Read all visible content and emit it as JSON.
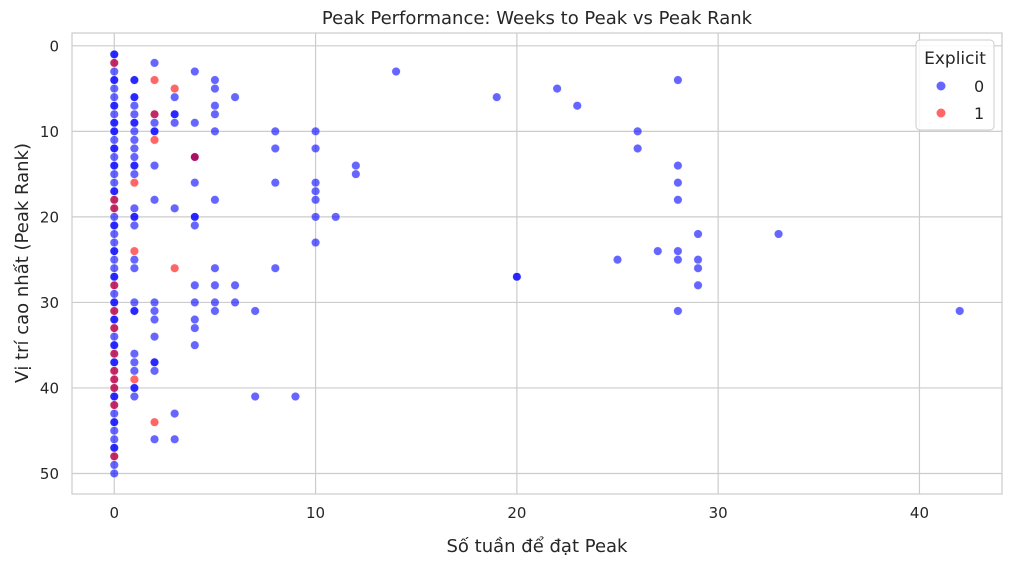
{
  "chart_data": {
    "type": "scatter",
    "title": "Peak Performance: Weeks to Peak vs Peak Rank",
    "xlabel": "Số tuần để đạt Peak",
    "ylabel": "Vị trí cao nhất (Peak Rank)",
    "xlim": [
      -2.1,
      44.1
    ],
    "ylim": [
      52.4,
      -1.5
    ],
    "y_inverted": true,
    "x_ticks": [
      0,
      10,
      20,
      30,
      40
    ],
    "y_ticks": [
      0,
      10,
      20,
      30,
      40,
      50
    ],
    "grid": true,
    "legend": {
      "title": "Explicit",
      "position": "top-right"
    },
    "series": [
      {
        "name": "0",
        "color": "#0000ff",
        "opacity": 0.6,
        "points": [
          [
            0,
            1
          ],
          [
            0,
            2
          ],
          [
            0,
            3
          ],
          [
            0,
            4
          ],
          [
            0,
            5
          ],
          [
            0,
            6
          ],
          [
            0,
            7
          ],
          [
            0,
            8
          ],
          [
            0,
            9
          ],
          [
            0,
            10
          ],
          [
            0,
            11
          ],
          [
            0,
            12
          ],
          [
            0,
            13
          ],
          [
            0,
            14
          ],
          [
            0,
            15
          ],
          [
            0,
            16
          ],
          [
            0,
            17
          ],
          [
            0,
            18
          ],
          [
            0,
            19
          ],
          [
            0,
            20
          ],
          [
            0,
            21
          ],
          [
            0,
            22
          ],
          [
            0,
            23
          ],
          [
            0,
            24
          ],
          [
            0,
            25
          ],
          [
            0,
            26
          ],
          [
            0,
            27
          ],
          [
            0,
            28
          ],
          [
            0,
            29
          ],
          [
            0,
            30
          ],
          [
            0,
            31
          ],
          [
            0,
            32
          ],
          [
            0,
            33
          ],
          [
            0,
            34
          ],
          [
            0,
            35
          ],
          [
            0,
            36
          ],
          [
            0,
            37
          ],
          [
            0,
            38
          ],
          [
            0,
            39
          ],
          [
            0,
            40
          ],
          [
            0,
            41
          ],
          [
            0,
            42
          ],
          [
            0,
            43
          ],
          [
            0,
            44
          ],
          [
            0,
            45
          ],
          [
            0,
            46
          ],
          [
            0,
            47
          ],
          [
            0,
            48
          ],
          [
            0,
            49
          ],
          [
            0,
            50
          ],
          [
            0,
            1
          ],
          [
            0,
            4
          ],
          [
            0,
            7
          ],
          [
            0,
            9
          ],
          [
            0,
            10
          ],
          [
            0,
            12
          ],
          [
            0,
            14
          ],
          [
            0,
            17
          ],
          [
            0,
            21
          ],
          [
            0,
            24
          ],
          [
            0,
            27
          ],
          [
            0,
            30
          ],
          [
            0,
            32
          ],
          [
            0,
            35
          ],
          [
            0,
            37
          ],
          [
            0,
            41
          ],
          [
            0,
            44
          ],
          [
            0,
            47
          ],
          [
            1,
            4
          ],
          [
            1,
            6
          ],
          [
            1,
            7
          ],
          [
            1,
            8
          ],
          [
            1,
            9
          ],
          [
            1,
            10
          ],
          [
            1,
            11
          ],
          [
            1,
            12
          ],
          [
            1,
            13
          ],
          [
            1,
            14
          ],
          [
            1,
            15
          ],
          [
            1,
            19
          ],
          [
            1,
            20
          ],
          [
            1,
            21
          ],
          [
            1,
            25
          ],
          [
            1,
            26
          ],
          [
            1,
            30
          ],
          [
            1,
            31
          ],
          [
            1,
            36
          ],
          [
            1,
            37
          ],
          [
            1,
            38
          ],
          [
            1,
            40
          ],
          [
            1,
            41
          ],
          [
            1,
            4
          ],
          [
            1,
            6
          ],
          [
            1,
            9
          ],
          [
            1,
            14
          ],
          [
            1,
            20
          ],
          [
            1,
            31
          ],
          [
            1,
            40
          ],
          [
            2,
            2
          ],
          [
            2,
            8
          ],
          [
            2,
            9
          ],
          [
            2,
            10
          ],
          [
            2,
            14
          ],
          [
            2,
            18
          ],
          [
            2,
            30
          ],
          [
            2,
            31
          ],
          [
            2,
            32
          ],
          [
            2,
            34
          ],
          [
            2,
            37
          ],
          [
            2,
            38
          ],
          [
            2,
            46
          ],
          [
            2,
            10
          ],
          [
            2,
            37
          ],
          [
            3,
            6
          ],
          [
            3,
            8
          ],
          [
            3,
            9
          ],
          [
            3,
            19
          ],
          [
            3,
            43
          ],
          [
            3,
            46
          ],
          [
            3,
            8
          ],
          [
            4,
            3
          ],
          [
            4,
            9
          ],
          [
            4,
            13
          ],
          [
            4,
            16
          ],
          [
            4,
            20
          ],
          [
            4,
            21
          ],
          [
            4,
            28
          ],
          [
            4,
            30
          ],
          [
            4,
            32
          ],
          [
            4,
            33
          ],
          [
            4,
            35
          ],
          [
            4,
            20
          ],
          [
            4,
            13
          ],
          [
            5,
            4
          ],
          [
            5,
            5
          ],
          [
            5,
            7
          ],
          [
            5,
            8
          ],
          [
            5,
            10
          ],
          [
            5,
            18
          ],
          [
            5,
            26
          ],
          [
            5,
            28
          ],
          [
            5,
            30
          ],
          [
            5,
            31
          ],
          [
            6,
            6
          ],
          [
            6,
            28
          ],
          [
            6,
            30
          ],
          [
            7,
            31
          ],
          [
            7,
            41
          ],
          [
            8,
            10
          ],
          [
            8,
            12
          ],
          [
            8,
            16
          ],
          [
            8,
            26
          ],
          [
            9,
            41
          ],
          [
            10,
            10
          ],
          [
            10,
            12
          ],
          [
            10,
            16
          ],
          [
            10,
            17
          ],
          [
            10,
            18
          ],
          [
            10,
            20
          ],
          [
            10,
            23
          ],
          [
            11,
            20
          ],
          [
            12,
            14
          ],
          [
            12,
            15
          ],
          [
            14,
            3
          ],
          [
            19,
            6
          ],
          [
            20,
            27
          ],
          [
            20,
            27
          ],
          [
            22,
            5
          ],
          [
            23,
            7
          ],
          [
            25,
            25
          ],
          [
            26,
            10
          ],
          [
            26,
            12
          ],
          [
            27,
            24
          ],
          [
            28,
            4
          ],
          [
            28,
            14
          ],
          [
            28,
            16
          ],
          [
            28,
            18
          ],
          [
            28,
            24
          ],
          [
            28,
            25
          ],
          [
            28,
            31
          ],
          [
            29,
            22
          ],
          [
            29,
            25
          ],
          [
            29,
            26
          ],
          [
            29,
            28
          ],
          [
            33,
            22
          ],
          [
            42,
            31
          ]
        ]
      },
      {
        "name": "1",
        "color": "#ff0000",
        "opacity": 0.6,
        "points": [
          [
            0,
            2
          ],
          [
            0,
            18
          ],
          [
            0,
            19
          ],
          [
            0,
            28
          ],
          [
            0,
            31
          ],
          [
            0,
            33
          ],
          [
            0,
            36
          ],
          [
            0,
            38
          ],
          [
            0,
            39
          ],
          [
            0,
            40
          ],
          [
            0,
            42
          ],
          [
            0,
            48
          ],
          [
            1,
            16
          ],
          [
            1,
            24
          ],
          [
            1,
            39
          ],
          [
            2,
            4
          ],
          [
            2,
            8
          ],
          [
            2,
            11
          ],
          [
            2,
            44
          ],
          [
            3,
            5
          ],
          [
            3,
            26
          ],
          [
            4,
            13
          ]
        ]
      }
    ]
  }
}
